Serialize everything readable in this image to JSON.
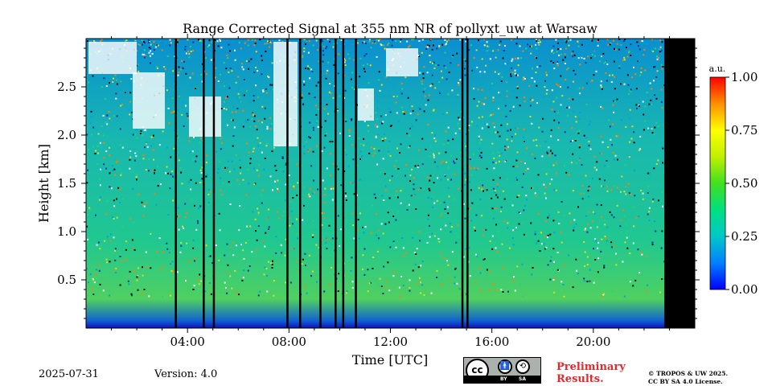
{
  "chart_data": {
    "type": "heatmap",
    "title": "Range Corrected Signal at 355 nm NR of pollyxt_uw at Warsaw",
    "xlabel": "Time [UTC]",
    "ylabel": "Height [km]",
    "xlim": [
      0,
      24
    ],
    "ylim": [
      0,
      3.0
    ],
    "x_ticks": [
      {
        "value": 4,
        "label": "04:00"
      },
      {
        "value": 8,
        "label": "08:00"
      },
      {
        "value": 12,
        "label": "12:00"
      },
      {
        "value": 16,
        "label": "16:00"
      },
      {
        "value": 20,
        "label": "20:00"
      }
    ],
    "y_ticks": [
      {
        "value": 0.5,
        "label": "0.5"
      },
      {
        "value": 1.0,
        "label": "1.0"
      },
      {
        "value": 1.5,
        "label": "1.5"
      },
      {
        "value": 2.0,
        "label": "2.0"
      },
      {
        "value": 2.5,
        "label": "2.5"
      }
    ],
    "colorbar": {
      "label": "a.u.",
      "range": [
        0,
        1
      ],
      "ticks": [
        {
          "value": 0.0,
          "label": "0.00"
        },
        {
          "value": 0.25,
          "label": "0.25"
        },
        {
          "value": 0.5,
          "label": "0.50"
        },
        {
          "value": 0.75,
          "label": "0.75"
        },
        {
          "value": 1.0,
          "label": "1.00"
        }
      ],
      "colors": [
        "#0000ff",
        "#0080ff",
        "#00c8c8",
        "#00e080",
        "#40e020",
        "#c0f000",
        "#ffff00",
        "#ff9000",
        "#ff0000"
      ]
    },
    "no_data_after_utc": 22.8,
    "gap_time_utc": [
      3.5,
      4.6,
      5.0,
      7.9,
      8.4,
      9.2,
      9.8,
      10.1,
      10.6,
      14.8,
      15.0
    ]
  },
  "footer": {
    "date": "2025-07-31",
    "version": "Version: 4.0",
    "preliminary_line1": "Preliminary",
    "preliminary_line2": "Results.",
    "copyright_line1": "© TROPOS & UW 2025.",
    "copyright_line2": "CC BY SA 4.0 License.",
    "cc_badge": {
      "cc": "cc",
      "by": "BY",
      "sa": "SA"
    }
  }
}
